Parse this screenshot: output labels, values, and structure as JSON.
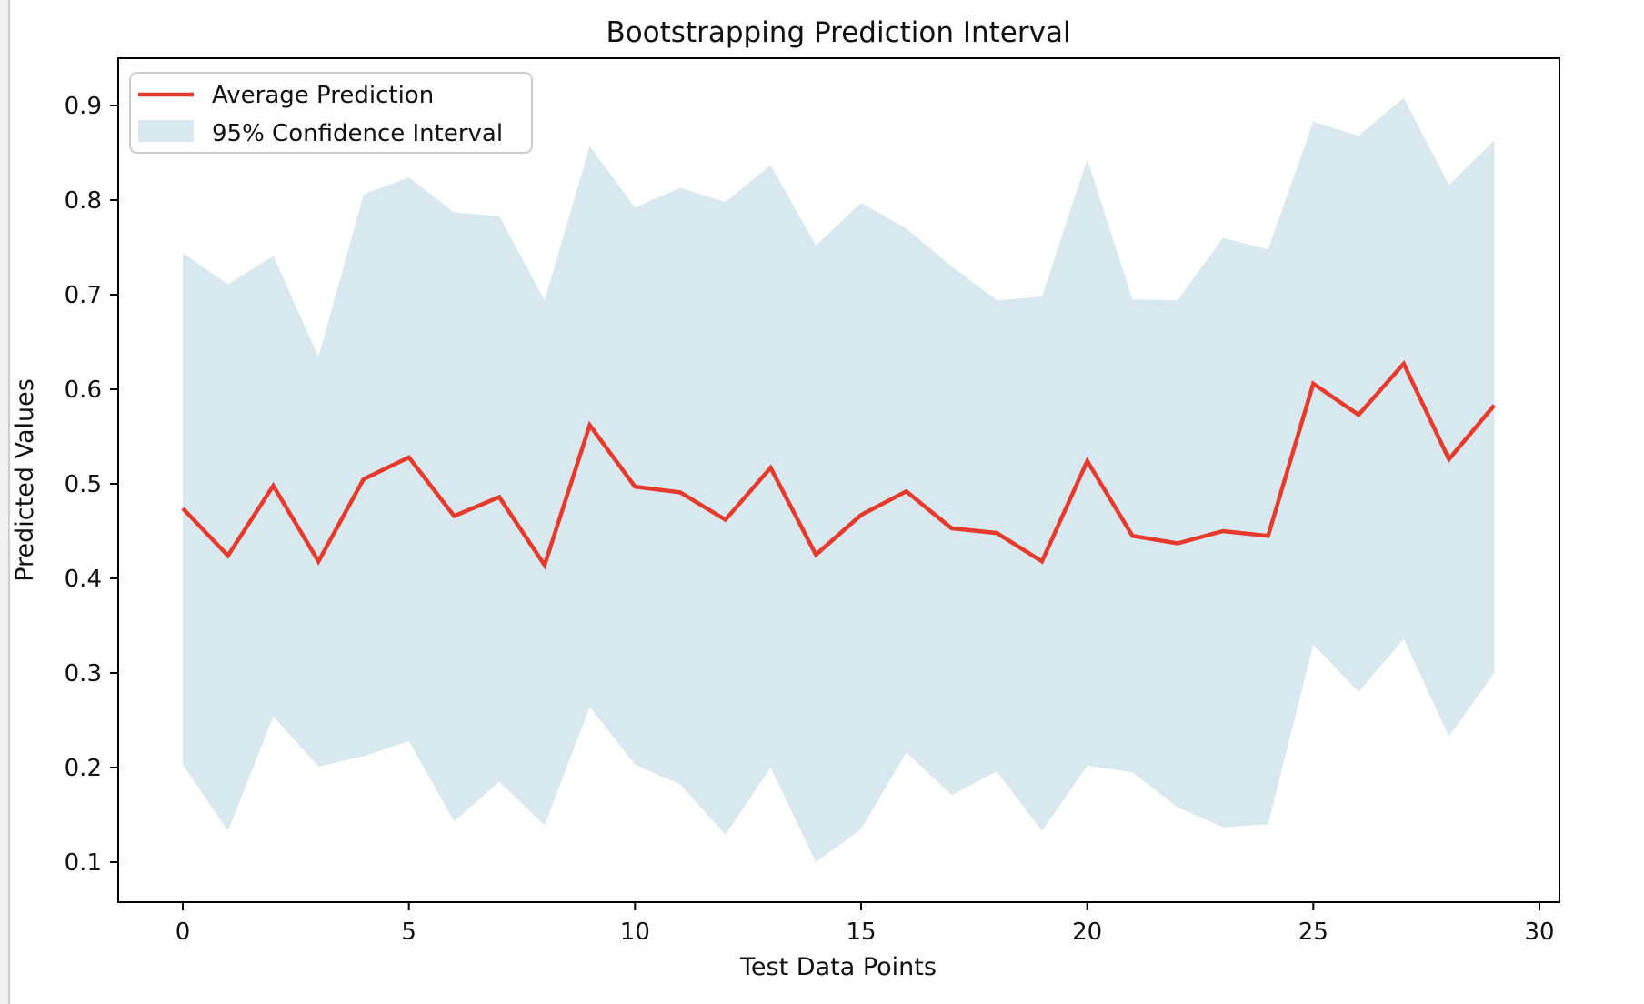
{
  "title": "Bootstrapping Prediction Interval",
  "xlabel": "Test Data Points",
  "ylabel": "Predicted Values",
  "legend": {
    "position": "upper left",
    "avg_label": "Average Prediction",
    "ci_label": "95% Confidence Interval"
  },
  "colors": {
    "line": "#e53a2c",
    "band": "#d9e8ee",
    "axis": "#000000",
    "legend_border": "#cccccc",
    "background": "#ffffff"
  },
  "chart_data": {
    "type": "line",
    "title": "Bootstrapping Prediction Interval",
    "xlabel": "Test Data Points",
    "ylabel": "Predicted Values",
    "grid": false,
    "legend_position": "upper left",
    "x": [
      0,
      1,
      2,
      3,
      4,
      5,
      6,
      7,
      8,
      9,
      10,
      11,
      12,
      13,
      14,
      15,
      16,
      17,
      18,
      19,
      20,
      21,
      22,
      23,
      24,
      25,
      26,
      27,
      28,
      29
    ],
    "series": [
      {
        "name": "Average Prediction",
        "style": "line",
        "color": "#e53a2c",
        "values": [
          0.474,
          0.424,
          0.498,
          0.418,
          0.505,
          0.528,
          0.466,
          0.486,
          0.414,
          0.562,
          0.497,
          0.491,
          0.462,
          0.517,
          0.425,
          0.467,
          0.492,
          0.453,
          0.448,
          0.418,
          0.524,
          0.445,
          0.437,
          0.45,
          0.445,
          0.606,
          0.573,
          0.627,
          0.526,
          0.583
        ]
      },
      {
        "name": "95% Confidence Interval (upper bound)",
        "style": "band-upper",
        "color": "#d9e8ee",
        "values": [
          0.744,
          0.711,
          0.741,
          0.634,
          0.806,
          0.824,
          0.787,
          0.783,
          0.694,
          0.857,
          0.792,
          0.813,
          0.798,
          0.837,
          0.752,
          0.797,
          0.77,
          0.73,
          0.694,
          0.698,
          0.843,
          0.695,
          0.694,
          0.76,
          0.748,
          0.883,
          0.868,
          0.908,
          0.816,
          0.863
        ]
      },
      {
        "name": "95% Confidence Interval (lower bound)",
        "style": "band-lower",
        "color": "#d9e8ee",
        "values": [
          0.203,
          0.133,
          0.254,
          0.201,
          0.212,
          0.228,
          0.143,
          0.185,
          0.139,
          0.264,
          0.203,
          0.182,
          0.129,
          0.2,
          0.1,
          0.135,
          0.216,
          0.171,
          0.196,
          0.133,
          0.202,
          0.195,
          0.158,
          0.137,
          0.14,
          0.33,
          0.28,
          0.336,
          0.233,
          0.3
        ]
      }
    ],
    "xticks": [
      0,
      5,
      10,
      15,
      20,
      25,
      30
    ],
    "yticks": [
      0.1,
      0.2,
      0.3,
      0.4,
      0.5,
      0.6,
      0.7,
      0.8,
      0.9
    ],
    "xlim": [
      -1.45,
      30.45
    ],
    "ylim": [
      0.058,
      0.95
    ]
  }
}
